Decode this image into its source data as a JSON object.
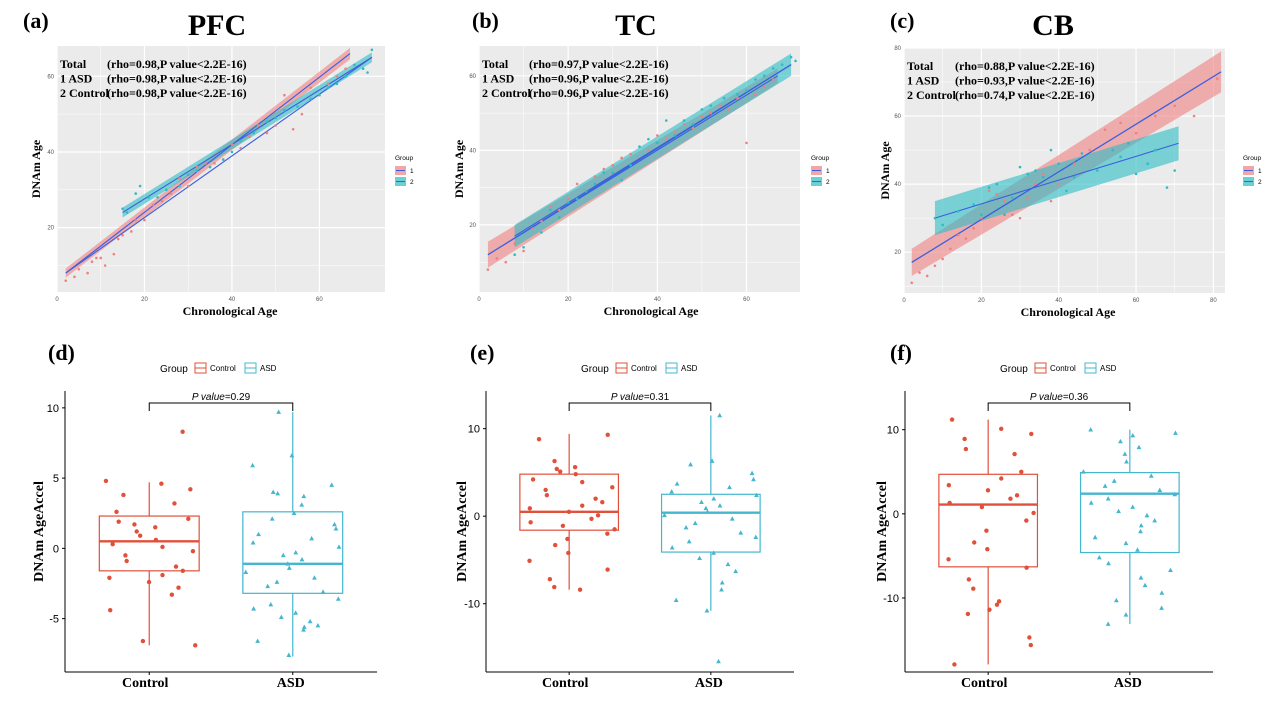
{
  "colors": {
    "group1": "#f08080",
    "group2": "#2bbcc4",
    "fit_line": "#3a5fe0",
    "control": "#e0503a",
    "asd": "#45b6cf",
    "panel_bg": "#ebebeb",
    "grid": "#ffffff"
  },
  "chart_data": [
    {
      "type": "scatter",
      "panel_label": "(a)",
      "title": "PFC",
      "xlabel": "Chronological Age",
      "ylabel": "DNAm Age",
      "xlim": [
        0,
        75
      ],
      "ylim": [
        3,
        68
      ],
      "xticks": [
        "0",
        "20",
        "40",
        "60"
      ],
      "yticks": [
        "20",
        "40",
        "60"
      ],
      "legend": {
        "title": "Group",
        "items": [
          "1",
          "2"
        ],
        "position": "right"
      },
      "stats": [
        {
          "label": "Total",
          "text": "(rho=0.98,P value<2.2E-16)"
        },
        {
          "label": "1 ASD",
          "text": "(rho=0.98,P value<2.2E-16)"
        },
        {
          "label": "2 Control",
          "text": "(rho=0.98,P value<2.2E-16)"
        }
      ],
      "fits": [
        {
          "group": "1",
          "x": [
            2,
            67
          ],
          "y": [
            8,
            66
          ],
          "band": [
            1.2,
            1.5
          ]
        },
        {
          "group": "2",
          "x": [
            15,
            72
          ],
          "y": [
            24,
            65
          ],
          "band": [
            1.3,
            1.3
          ]
        },
        {
          "group": "total",
          "x": [
            2,
            72
          ],
          "y": [
            8,
            65
          ]
        }
      ],
      "series": [
        {
          "name": "1",
          "x": [
            2,
            4,
            5,
            7,
            8,
            9,
            10,
            11,
            13,
            14,
            15,
            17,
            18,
            20,
            22,
            24,
            26,
            28,
            30,
            32,
            34,
            36,
            38,
            40,
            42,
            44,
            46,
            48,
            50,
            52,
            54,
            56,
            58,
            60,
            62,
            64,
            66
          ],
          "y": [
            6,
            7,
            9,
            8,
            11,
            12,
            12,
            10,
            13,
            17,
            18,
            19,
            22,
            22,
            26,
            27,
            29,
            33,
            31,
            36,
            37,
            37,
            38,
            42,
            41,
            44,
            47,
            45,
            47,
            55,
            46,
            50,
            57,
            55,
            58,
            60,
            62
          ]
        },
        {
          "name": "2",
          "x": [
            15,
            16,
            18,
            19,
            21,
            23,
            25,
            28,
            30,
            32,
            35,
            38,
            40,
            42,
            45,
            48,
            50,
            52,
            55,
            58,
            60,
            62,
            64,
            66,
            68,
            70,
            71,
            72
          ],
          "y": [
            25,
            24,
            29,
            31,
            28,
            28,
            30,
            31,
            34,
            35,
            36,
            38,
            40,
            43,
            45,
            48,
            49,
            51,
            52,
            54,
            55,
            57,
            58,
            60,
            63,
            62,
            61,
            67
          ]
        }
      ]
    },
    {
      "type": "scatter",
      "panel_label": "(b)",
      "title": "TC",
      "xlabel": "Chronological Age",
      "ylabel": "DNAm Age",
      "xlim": [
        0,
        72
      ],
      "ylim": [
        2,
        68
      ],
      "xticks": [
        "0",
        "20",
        "40",
        "60"
      ],
      "yticks": [
        "20",
        "40",
        "60"
      ],
      "legend": {
        "title": "Group",
        "items": [
          "1",
          "2"
        ],
        "position": "right"
      },
      "stats": [
        {
          "label": "Total",
          "text": "(rho=0.97,P value<2.2E-16)"
        },
        {
          "label": "1 ASD",
          "text": "(rho=0.96,P value<2.2E-16)"
        },
        {
          "label": "2 Control",
          "text": "(rho=0.96,P value<2.2E-16)"
        }
      ],
      "fits": [
        {
          "group": "1",
          "x": [
            2,
            67
          ],
          "y": [
            12,
            60
          ],
          "band": [
            3.5,
            2.0
          ]
        },
        {
          "group": "2",
          "x": [
            8,
            70
          ],
          "y": [
            17,
            63
          ],
          "band": [
            3.0,
            3.0
          ]
        },
        {
          "group": "total",
          "x": [
            2,
            70
          ],
          "y": [
            12,
            63
          ]
        }
      ],
      "series": [
        {
          "name": "1",
          "x": [
            2,
            4,
            6,
            8,
            10,
            12,
            14,
            16,
            18,
            20,
            22,
            24,
            26,
            28,
            30,
            32,
            34,
            36,
            38,
            40,
            42,
            44,
            46,
            48,
            50,
            52,
            54,
            56,
            58,
            60,
            62,
            64,
            66
          ],
          "y": [
            8,
            11,
            10,
            15,
            13,
            19,
            21,
            25,
            24,
            27,
            31,
            29,
            33,
            35,
            36,
            38,
            39,
            41,
            40,
            44,
            43,
            45,
            47,
            46,
            49,
            50,
            52,
            51,
            54,
            42,
            55,
            57,
            59
          ]
        },
        {
          "name": "2",
          "x": [
            8,
            10,
            14,
            16,
            18,
            20,
            22,
            24,
            26,
            28,
            30,
            32,
            34,
            36,
            38,
            40,
            42,
            44,
            46,
            48,
            50,
            52,
            55,
            58,
            60,
            62,
            64,
            66,
            68,
            70,
            71
          ],
          "y": [
            12,
            14,
            18,
            24,
            22,
            26,
            27,
            29,
            31,
            34,
            34,
            32,
            36,
            41,
            43,
            42,
            48,
            44,
            48,
            47,
            51,
            52,
            54,
            55,
            56,
            59,
            60,
            62,
            63,
            65,
            64
          ]
        }
      ]
    },
    {
      "type": "scatter",
      "panel_label": "(c)",
      "title": "CB",
      "xlabel": "Chronological Age",
      "ylabel": "DNAm Age",
      "xlim": [
        0,
        83
      ],
      "ylim": [
        8,
        80
      ],
      "xticks": [
        "0",
        "20",
        "40",
        "60",
        "80"
      ],
      "yticks": [
        "20",
        "40",
        "60",
        "80"
      ],
      "legend": {
        "title": "Group",
        "items": [
          "1",
          "2"
        ],
        "position": "right"
      },
      "stats": [
        {
          "label": "Total",
          "text": "(rho=0.88,P value<2.2E-16)"
        },
        {
          "label": "1 ASD",
          "text": "(rho=0.93,P value<2.2E-16)"
        },
        {
          "label": "2 Control",
          "text": "(rho=0.74,P value<2.2E-16)"
        }
      ],
      "fits": [
        {
          "group": "1",
          "x": [
            2,
            82
          ],
          "y": [
            17,
            73
          ],
          "band": [
            4.0,
            6.0
          ]
        },
        {
          "group": "2",
          "x": [
            8,
            71
          ],
          "y": [
            30,
            52
          ],
          "band": [
            5.0,
            5.0
          ]
        },
        {
          "group": "total",
          "x": [
            2,
            82
          ],
          "y": [
            17,
            73
          ]
        }
      ],
      "series": [
        {
          "name": "1",
          "x": [
            2,
            4,
            6,
            8,
            10,
            12,
            14,
            16,
            18,
            20,
            22,
            24,
            26,
            28,
            30,
            32,
            34,
            36,
            38,
            40,
            44,
            48,
            52,
            56,
            60,
            65,
            70,
            75,
            81
          ],
          "y": [
            11,
            14,
            13,
            16,
            18,
            21,
            25,
            24,
            27,
            30,
            38,
            37,
            35,
            31,
            30,
            36,
            40,
            43,
            35,
            40,
            46,
            50,
            56,
            58,
            55,
            60,
            63,
            60,
            71
          ]
        },
        {
          "name": "2",
          "x": [
            8,
            10,
            14,
            18,
            20,
            22,
            24,
            26,
            28,
            30,
            32,
            34,
            36,
            38,
            40,
            42,
            44,
            46,
            50,
            54,
            56,
            58,
            60,
            63,
            65,
            68,
            70
          ],
          "y": [
            30,
            28,
            32,
            34,
            31,
            39,
            40,
            31,
            36,
            45,
            43,
            44,
            42,
            50,
            46,
            38,
            42,
            49,
            44,
            50,
            48,
            52,
            43,
            46,
            50,
            39,
            44
          ]
        }
      ]
    },
    {
      "type": "box",
      "panel_label": "(d)",
      "ylabel": "DNAm AgeAccel",
      "categories": [
        "Control",
        "ASD"
      ],
      "ylim": [
        -8.8,
        11.2
      ],
      "yticks": [
        "-5",
        "0",
        "5",
        "10"
      ],
      "legend": {
        "title": "Group",
        "items": [
          "Control",
          "ASD"
        ],
        "position": "top"
      },
      "pvalue_label": "P value",
      "pvalue": "=0.29",
      "boxes": [
        {
          "name": "Control",
          "min": -6.9,
          "q1": -1.6,
          "median": 0.5,
          "q3": 2.3,
          "max": 4.7
        },
        {
          "name": "ASD",
          "min": -7.7,
          "q1": -3.2,
          "median": -1.1,
          "q3": 2.6,
          "max": 9.7
        }
      ],
      "points": [
        {
          "name": "Control",
          "values": [
            8.3,
            4.8,
            4.6,
            4.2,
            3.8,
            3.2,
            2.6,
            2.1,
            1.9,
            1.7,
            1.5,
            1.2,
            0.9,
            0.6,
            0.3,
            0.1,
            -0.2,
            -0.5,
            -0.9,
            -1.3,
            -1.6,
            -1.9,
            -2.1,
            -2.4,
            -2.8,
            -3.3,
            -4.4,
            -6.6,
            -6.9
          ]
        },
        {
          "name": "ASD",
          "values": [
            9.7,
            6.6,
            5.9,
            4.5,
            4.0,
            3.9,
            3.7,
            3.1,
            2.5,
            2.1,
            1.7,
            1.4,
            1.0,
            0.7,
            0.4,
            0.1,
            -0.3,
            -0.5,
            -0.8,
            -1.1,
            -1.4,
            -1.7,
            -2.1,
            -2.4,
            -2.7,
            -3.1,
            -3.6,
            -4.0,
            -4.3,
            -4.6,
            -4.9,
            -5.2,
            -5.5,
            -5.6,
            -5.8,
            -6.6,
            -7.6
          ]
        }
      ]
    },
    {
      "type": "box",
      "panel_label": "(e)",
      "ylabel": "DNAm AgeAccel",
      "categories": [
        "Control",
        "ASD"
      ],
      "ylim": [
        -17.8,
        14.3
      ],
      "yticks": [
        "-10",
        "0",
        "10"
      ],
      "legend": {
        "title": "Group",
        "items": [
          "Control",
          "ASD"
        ],
        "position": "top"
      },
      "pvalue_label": "P value",
      "pvalue": "=0.31",
      "boxes": [
        {
          "name": "Control",
          "min": -8.4,
          "q1": -1.6,
          "median": 0.5,
          "q3": 4.8,
          "max": 9.4
        },
        {
          "name": "ASD",
          "min": -10.8,
          "q1": -4.1,
          "median": 0.4,
          "q3": 2.5,
          "max": 11.5
        }
      ],
      "points": [
        {
          "name": "Control",
          "values": [
            9.3,
            8.8,
            6.3,
            5.6,
            5.4,
            5.1,
            4.8,
            4.2,
            3.9,
            3.3,
            3.0,
            2.4,
            2.0,
            1.6,
            1.2,
            0.9,
            0.5,
            0.1,
            -0.3,
            -0.7,
            -1.1,
            -1.5,
            -2.0,
            -2.6,
            -3.3,
            -4.2,
            -5.1,
            -6.1,
            -7.2,
            -8.1,
            -8.4
          ]
        },
        {
          "name": "ASD",
          "values": [
            11.5,
            6.3,
            5.9,
            4.9,
            4.2,
            3.7,
            3.3,
            2.8,
            2.4,
            2.0,
            1.6,
            1.2,
            0.9,
            0.5,
            0.1,
            -0.3,
            -0.8,
            -1.3,
            -1.9,
            -2.4,
            -2.9,
            -3.6,
            -4.2,
            -4.8,
            -5.5,
            -6.3,
            -7.6,
            -8.4,
            -9.6,
            -10.8,
            -16.6
          ]
        }
      ]
    },
    {
      "type": "box",
      "panel_label": "(f)",
      "ylabel": "DNAm AgeAccel",
      "categories": [
        "Control",
        "ASD"
      ],
      "ylim": [
        -18.8,
        14.6
      ],
      "yticks": [
        "-10",
        "0",
        "10"
      ],
      "legend": {
        "title": "Group",
        "items": [
          "Control",
          "ASD"
        ],
        "position": "top"
      },
      "pvalue_label": "P value",
      "pvalue": "=0.36",
      "boxes": [
        {
          "name": "Control",
          "min": -17.9,
          "q1": -6.3,
          "median": 1.1,
          "q3": 4.7,
          "max": 11.2
        },
        {
          "name": "ASD",
          "min": -13.1,
          "q1": -4.6,
          "median": 2.4,
          "q3": 4.9,
          "max": 10.0
        }
      ],
      "points": [
        {
          "name": "Control",
          "values": [
            11.2,
            10.1,
            9.5,
            8.9,
            7.7,
            7.1,
            5.0,
            4.2,
            3.4,
            2.8,
            2.2,
            1.8,
            1.3,
            0.8,
            0.1,
            -0.8,
            -2.0,
            -3.4,
            -4.2,
            -5.4,
            -6.4,
            -7.8,
            -8.9,
            -10.4,
            -10.8,
            -11.4,
            -11.9,
            -14.7,
            -15.6,
            -17.9
          ]
        },
        {
          "name": "ASD",
          "values": [
            10.0,
            9.6,
            9.3,
            8.6,
            7.9,
            7.1,
            6.2,
            5.0,
            4.5,
            3.9,
            3.3,
            2.8,
            2.3,
            1.8,
            1.3,
            0.8,
            0.3,
            -0.2,
            -0.8,
            -1.4,
            -2.1,
            -2.8,
            -3.5,
            -4.3,
            -5.2,
            -5.9,
            -6.7,
            -7.6,
            -8.5,
            -9.4,
            -10.3,
            -11.2,
            -12.0,
            -13.1
          ]
        }
      ]
    }
  ]
}
